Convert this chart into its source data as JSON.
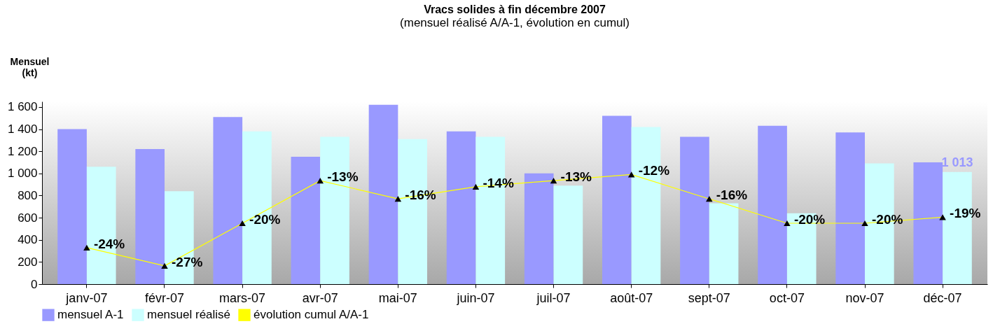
{
  "chart_data": {
    "type": "bar",
    "title": "Vracs solides à fin décembre 2007",
    "subtitle": "(mensuel réalisé A/A-1, évolution en cumul)",
    "ylabel": "Mensuel\n(kt)",
    "categories": [
      "janv-07",
      "févr-07",
      "mars-07",
      "avr-07",
      "mai-07",
      "juin-07",
      "juil-07",
      "août-07",
      "sept-07",
      "oct-07",
      "nov-07",
      "déc-07"
    ],
    "ylim": [
      0,
      1650
    ],
    "yticks": [
      0,
      200,
      400,
      600,
      800,
      {
        "value": 1000,
        "label": "1 000"
      },
      {
        "value": 1200,
        "label": "1 200"
      },
      {
        "value": 1400,
        "label": "1 400"
      },
      {
        "value": 1600,
        "label": "1 600"
      }
    ],
    "y2lim": [
      -30,
      0
    ],
    "series": [
      {
        "name": "mensuel A-1",
        "color": "#9999ff",
        "values": [
          1400,
          1220,
          1510,
          1150,
          1620,
          1380,
          1000,
          1520,
          1330,
          1430,
          1370,
          1100
        ]
      },
      {
        "name": "mensuel réalisé",
        "color": "#ccffff",
        "values": [
          1060,
          840,
          1380,
          1330,
          1310,
          1330,
          890,
          1420,
          730,
          640,
          1090,
          1013
        ],
        "value_labels": [
          null,
          null,
          null,
          null,
          null,
          null,
          null,
          null,
          null,
          null,
          null,
          "1 013"
        ]
      },
      {
        "name": "évolution cumul A/A-1",
        "type": "line",
        "axis": "y2",
        "color": "#ffff00",
        "values": [
          -24,
          -27,
          -20,
          -13,
          -16,
          -14,
          -13,
          -12,
          -16,
          -20,
          -20,
          -19
        ],
        "value_labels": [
          "-24%",
          "-27%",
          "-20%",
          "-13%",
          "-16%",
          "-14%",
          "-13%",
          "-12%",
          "-16%",
          "-20%",
          "-20%",
          "-19%"
        ]
      }
    ],
    "grid": false,
    "legend": "bottom",
    "marker": "triangle"
  }
}
